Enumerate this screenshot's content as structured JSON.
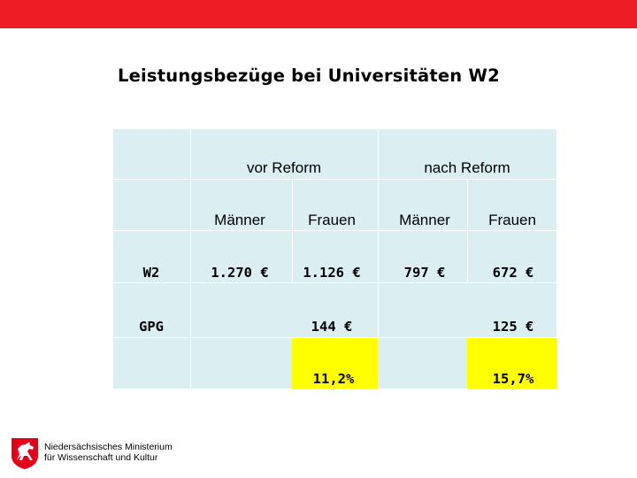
{
  "header": {
    "title": "Leistungsbezüge bei Universitäten W2"
  },
  "table": {
    "groups": {
      "vor": "vor Reform",
      "nach": "nach Reform"
    },
    "subheaders": {
      "vor_maenner": "Männer",
      "vor_frauen": "Frauen",
      "nach_maenner": "Männer",
      "nach_frauen": "Frauen"
    },
    "rows": {
      "w2": {
        "label": "W2",
        "vor_maenner": "1.270 €",
        "vor_frauen": "1.126 €",
        "nach_maenner": "797 €",
        "nach_frauen": "672 €"
      },
      "gpg": {
        "label": "GPG",
        "vor": "144 €",
        "nach": "125 €"
      },
      "percent": {
        "vor": "11,2%",
        "nach": "15,7%"
      }
    },
    "colors": {
      "cell_bg": "#dbeef1",
      "highlight": "#ffff00",
      "top_bar": "#ee1c24"
    }
  },
  "footer": {
    "logo_icon": "lower-saxony-horse-icon",
    "logo_line1": "Niedersächsisches Ministerium",
    "logo_line2": "für Wissenschaft und Kultur"
  }
}
